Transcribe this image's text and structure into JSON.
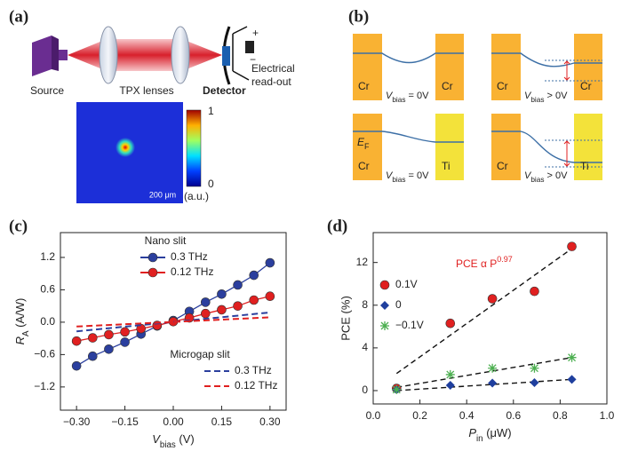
{
  "panel_labels": [
    "(a)",
    "(b)",
    "(c)",
    "(d)"
  ],
  "diagram_a": {
    "source": "Source",
    "lenses": "TPX lenses",
    "detector": "Detector",
    "readout": [
      "Electrical",
      "read-out"
    ],
    "plus": "+",
    "minus": "−",
    "scalebar": "200 μm",
    "colorbar_max": "1",
    "colorbar_min": "0",
    "colorbar_unit": "(a.u.)"
  },
  "diagram_b": {
    "cells": [
      {
        "left": "Cr",
        "right": "Cr",
        "bias": {
          "v": "V",
          "sub": "bias",
          "rest": " = 0V"
        }
      },
      {
        "left": "Cr",
        "right": "Cr",
        "bias": {
          "v": "V",
          "sub": "bias",
          "rest": " > 0V"
        }
      },
      {
        "left": "Cr",
        "right": "Ti",
        "ef": {
          "v": "E",
          "sub": "F"
        },
        "bias": {
          "v": "V",
          "sub": "bias",
          "rest": " = 0V"
        }
      },
      {
        "left": "Cr",
        "right": "Ti",
        "bias": {
          "v": "V",
          "sub": "bias",
          "rest": " > 0V"
        }
      }
    ]
  },
  "chart_data": [
    {
      "type": "line",
      "xlabel": {
        "v": "V",
        "sub": "bias",
        "rest": " (V)"
      },
      "ylabel": {
        "v": "R",
        "sub": "A",
        "rest": " (A/W)"
      },
      "xlim": [
        -0.35,
        0.35
      ],
      "ylim": [
        -1.63,
        1.66
      ],
      "xticks": [
        {
          "value": -0.3,
          "label": "−0.30"
        },
        {
          "value": -0.15,
          "label": "−0.15"
        },
        {
          "value": 0,
          "label": "0.00"
        },
        {
          "value": 0.15,
          "label": "0.15"
        },
        {
          "value": 0.3,
          "label": "0.30"
        }
      ],
      "yticks": [
        1.2,
        0.6,
        {
          "value": 0,
          "label": "0.0"
        },
        {
          "value": -0.6,
          "label": "−0.6"
        },
        {
          "value": -1.2,
          "label": "−1.2"
        }
      ],
      "legend_titles": [
        "Nano slit",
        "Microgap slit"
      ],
      "series": [
        {
          "name": "0.3 THz",
          "legend_group": 0,
          "color": "#2b3f9e",
          "style": "solid",
          "marker": "circle",
          "x": [
            -0.3,
            -0.25,
            -0.2,
            -0.15,
            -0.1,
            -0.05,
            0,
            0.05,
            0.1,
            0.15,
            0.2,
            0.25,
            0.3
          ],
          "values": [
            -0.81,
            -0.63,
            -0.5,
            -0.37,
            -0.22,
            -0.07,
            0.03,
            0.2,
            0.37,
            0.52,
            0.69,
            0.87,
            1.1
          ]
        },
        {
          "name": "0.12 THz",
          "legend_group": 0,
          "color": "#e02020",
          "style": "solid",
          "marker": "circle",
          "x": [
            -0.3,
            -0.25,
            -0.2,
            -0.15,
            -0.1,
            -0.05,
            0,
            0.05,
            0.1,
            0.15,
            0.2,
            0.25,
            0.3
          ],
          "values": [
            -0.35,
            -0.29,
            -0.23,
            -0.18,
            -0.12,
            -0.06,
            0.01,
            0.08,
            0.16,
            0.23,
            0.3,
            0.41,
            0.48
          ]
        },
        {
          "name": "0.3 THz",
          "legend_group": 1,
          "color": "#2b3f9e",
          "style": "dashed",
          "x": [
            -0.3,
            0.3
          ],
          "values": [
            -0.17,
            0.18
          ]
        },
        {
          "name": "0.12 THz",
          "legend_group": 1,
          "color": "#e02020",
          "style": "dashed",
          "x": [
            -0.3,
            0.3
          ],
          "values": [
            -0.08,
            0.09
          ]
        }
      ]
    },
    {
      "type": "scatter",
      "xlabel": {
        "v": "P",
        "sub": "in",
        "rest": " (μW)"
      },
      "ylabel": "PCE (%)",
      "xlim": [
        0,
        1.0
      ],
      "ylim": [
        -1.25,
        14.8
      ],
      "xticks": [
        {
          "value": 0,
          "label": "0.0"
        },
        0.2,
        0.4,
        0.6,
        0.8,
        {
          "value": 1.0,
          "label": "1.0"
        }
      ],
      "yticks": [
        0,
        4,
        8,
        12
      ],
      "annotation": {
        "text": "PCE α P",
        "sup": "0.97",
        "color": "#e02020"
      },
      "series": [
        {
          "name": "0.1V",
          "color": "#e02020",
          "marker": "circle",
          "x": [
            0.1,
            0.33,
            0.51,
            0.69,
            0.85
          ],
          "values": [
            0.2,
            6.3,
            8.6,
            9.3,
            13.5
          ]
        },
        {
          "name": "0",
          "color": "#1f3f9e",
          "marker": "diamond",
          "x": [
            0.1,
            0.33,
            0.51,
            0.69,
            0.85
          ],
          "values": [
            0.1,
            0.5,
            0.7,
            0.75,
            1.05
          ]
        },
        {
          "name": "−0.1V",
          "color": "#4caf50",
          "marker": "asterisk",
          "x": [
            0.1,
            0.33,
            0.51,
            0.69,
            0.85
          ],
          "values": [
            0.1,
            1.5,
            2.1,
            2.1,
            3.1
          ]
        }
      ],
      "fits": [
        {
          "x": [
            0.1,
            0.85
          ],
          "values": [
            1.6,
            13.3
          ]
        },
        {
          "x": [
            0.1,
            0.85
          ],
          "values": [
            0.3,
            3.1
          ]
        },
        {
          "x": [
            0.1,
            0.85
          ],
          "values": [
            0,
            1.05
          ]
        }
      ]
    }
  ]
}
